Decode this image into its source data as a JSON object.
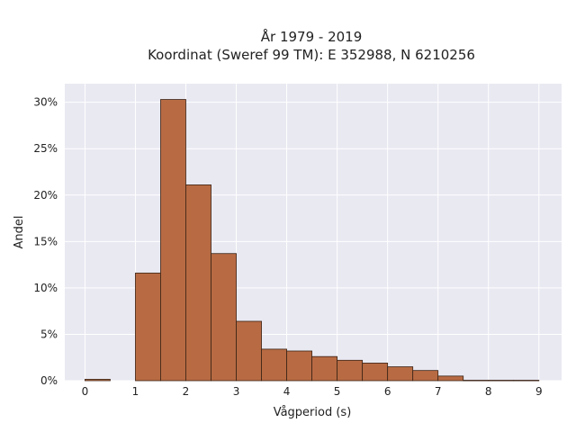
{
  "chart_data": {
    "type": "bar",
    "title_line1": "År 1979 - 2019",
    "title_line2": "Koordinat (Sweref 99 TM): E 352988, N 6210256",
    "xlabel": "Vågperiod (s)",
    "ylabel": "Andel",
    "bin_width": 0.5,
    "bins": [
      {
        "x0": 0.0,
        "value": 0.15
      },
      {
        "x0": 0.5,
        "value": 0.0
      },
      {
        "x0": 1.0,
        "value": 11.6
      },
      {
        "x0": 1.5,
        "value": 30.3
      },
      {
        "x0": 2.0,
        "value": 21.1
      },
      {
        "x0": 2.5,
        "value": 13.7
      },
      {
        "x0": 3.0,
        "value": 6.4
      },
      {
        "x0": 3.5,
        "value": 3.4
      },
      {
        "x0": 4.0,
        "value": 3.2
      },
      {
        "x0": 4.5,
        "value": 2.6
      },
      {
        "x0": 5.0,
        "value": 2.2
      },
      {
        "x0": 5.5,
        "value": 1.9
      },
      {
        "x0": 6.0,
        "value": 1.5
      },
      {
        "x0": 6.5,
        "value": 1.1
      },
      {
        "x0": 7.0,
        "value": 0.5
      },
      {
        "x0": 7.5,
        "value": 0.05
      },
      {
        "x0": 8.0,
        "value": 0.05
      },
      {
        "x0": 8.5,
        "value": 0.05
      }
    ],
    "xlim": [
      -0.4,
      9.45
    ],
    "ylim": [
      0,
      32
    ],
    "xticks": [
      0,
      1,
      2,
      3,
      4,
      5,
      6,
      7,
      8,
      9
    ],
    "xtick_labels": [
      "0",
      "1",
      "2",
      "3",
      "4",
      "5",
      "6",
      "7",
      "8",
      "9"
    ],
    "yticks": [
      0,
      5,
      10,
      15,
      20,
      25,
      30
    ],
    "ytick_labels": [
      "0%",
      "5%",
      "10%",
      "15%",
      "20%",
      "25%",
      "30%"
    ],
    "grid": true,
    "colors": {
      "bar_fill": "#b86b43",
      "bar_edge": "#3b2416",
      "plot_bg": "#e9e9f2",
      "grid": "#ffffff"
    }
  }
}
